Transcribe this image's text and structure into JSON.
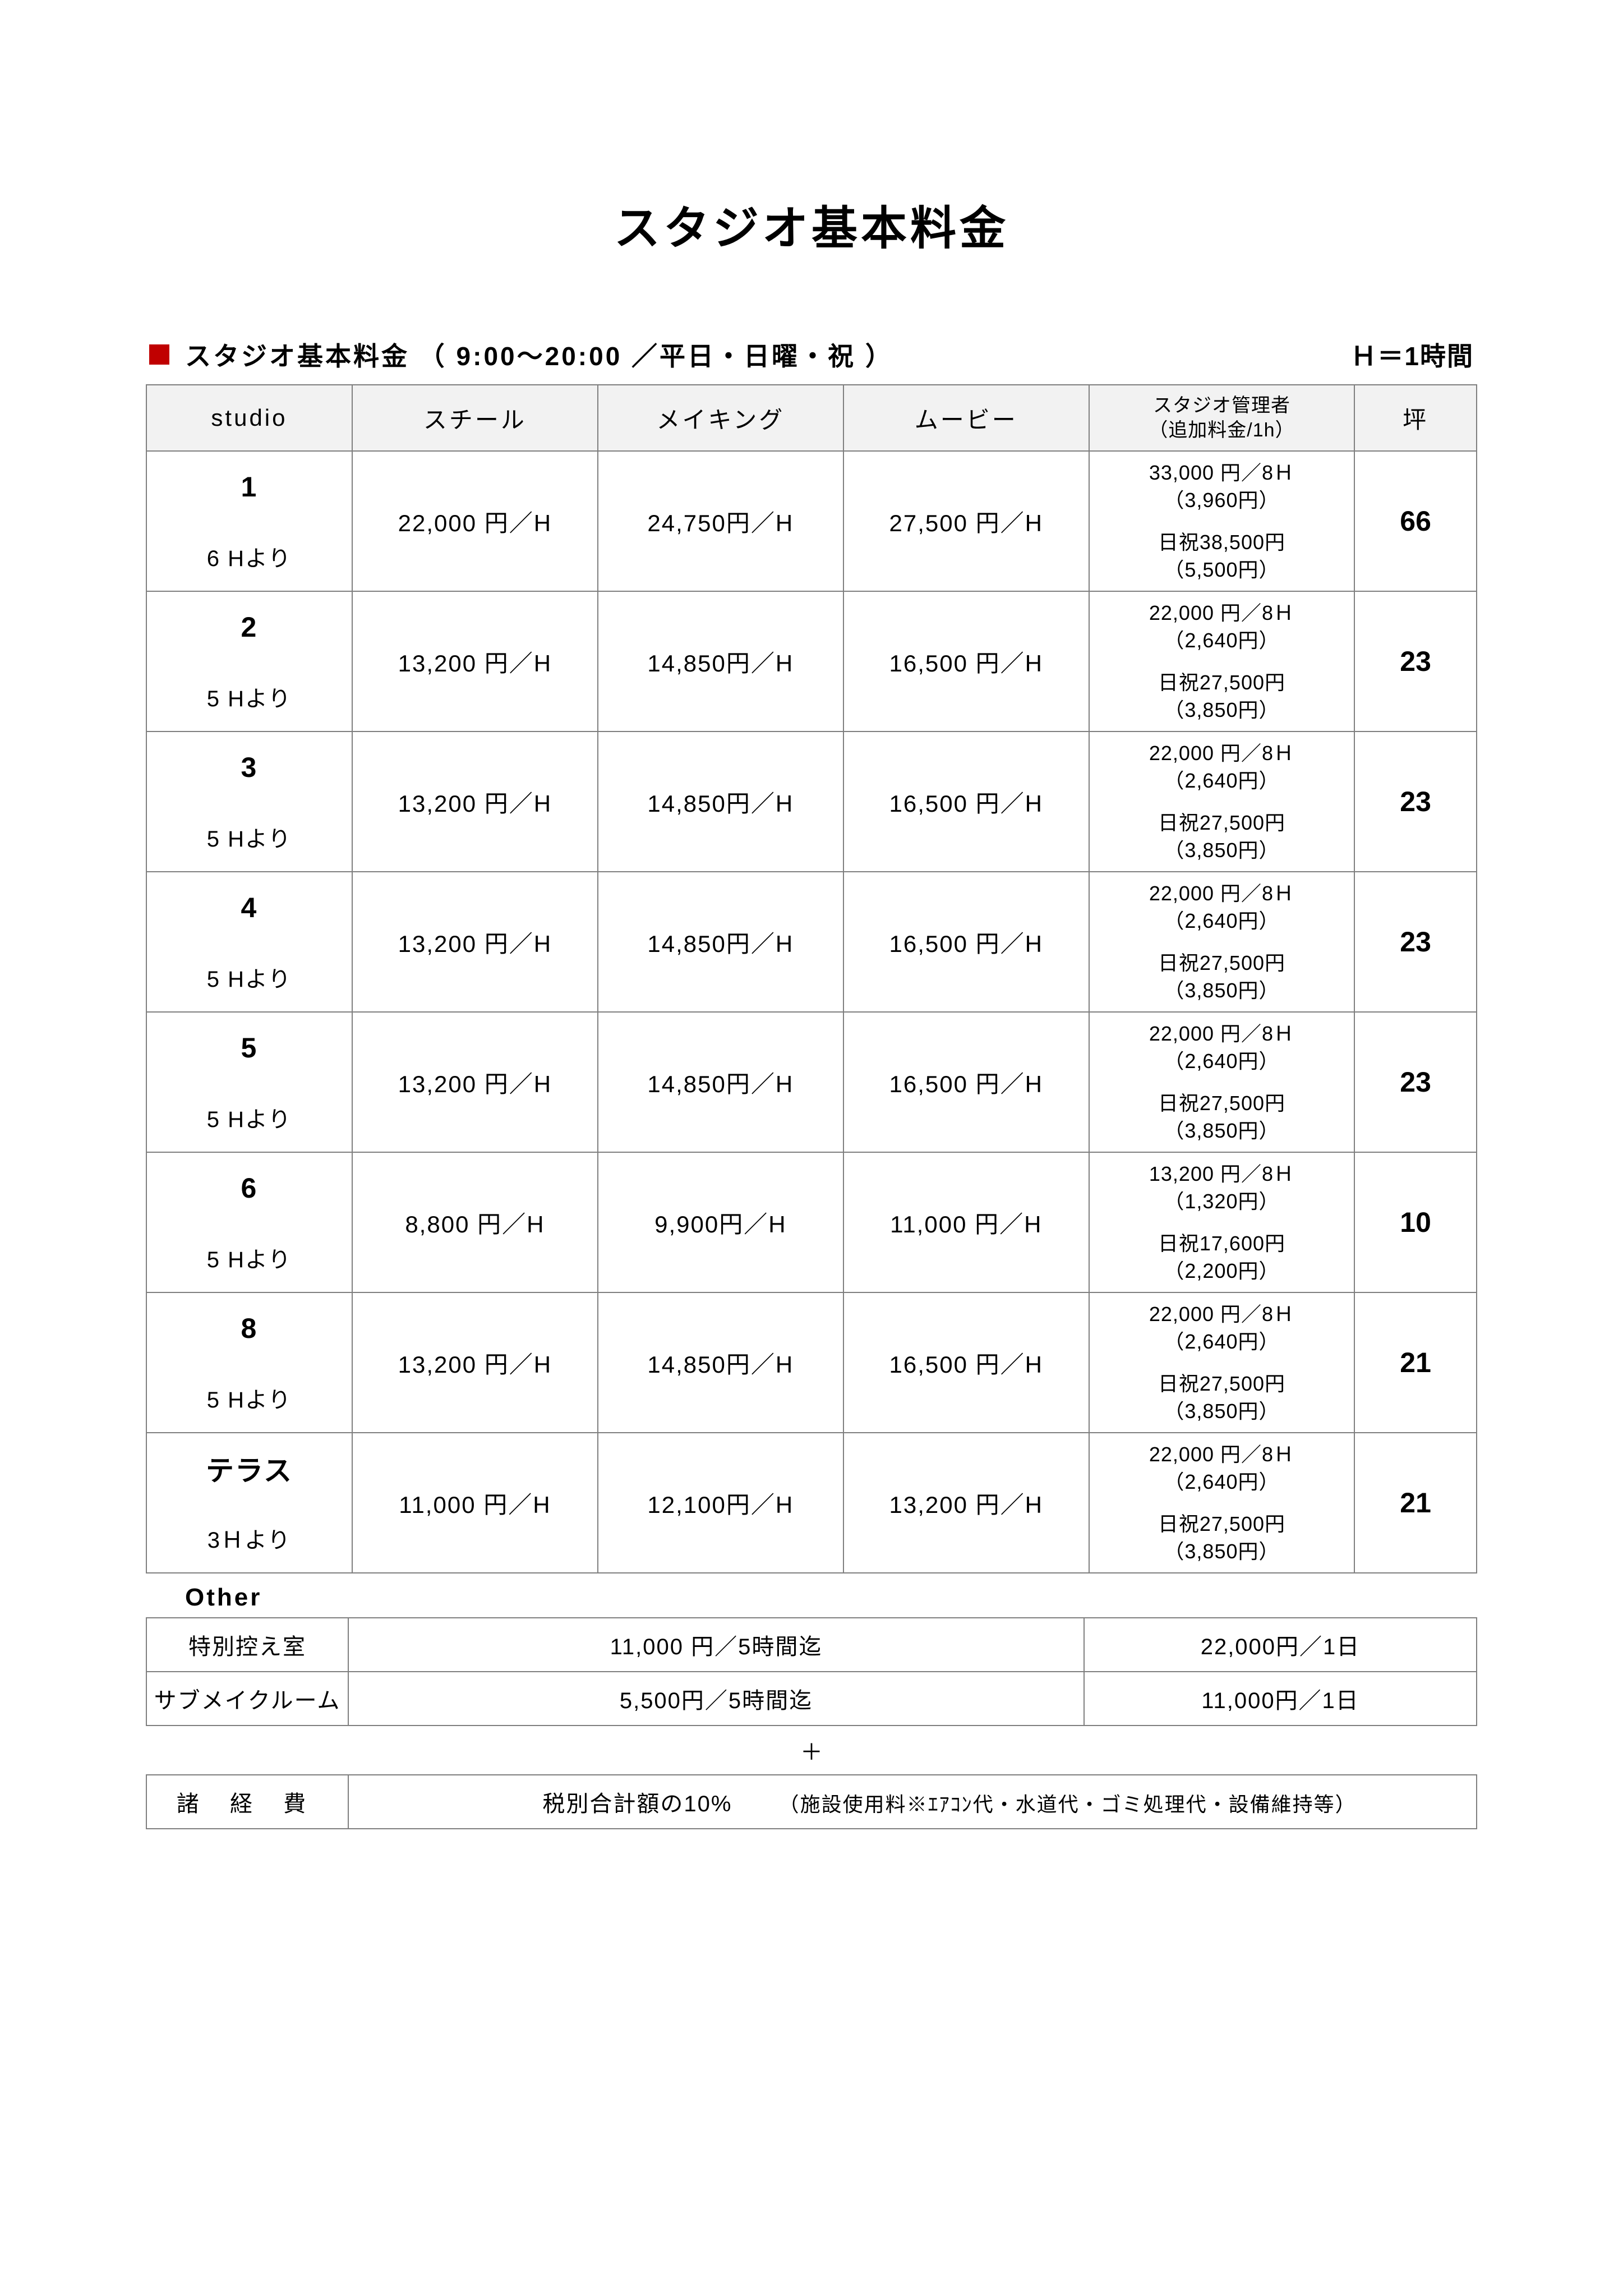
{
  "title": "スタジオ基本料金",
  "subtitle_left": "スタジオ基本料金 （ 9:00〜20:00 ／平日・日曜・祝 ）",
  "subtitle_right": "Ｈ＝1時間",
  "colors": {
    "marker": "#c00000",
    "header_bg": "#f2f2f2",
    "border": "#7f7f7f"
  },
  "columns": {
    "studio": "studio",
    "steel": "スチール",
    "making": "メイキング",
    "movie": "ムービー",
    "manager_l1": "スタジオ管理者",
    "manager_l2": "（追加料金/1h）",
    "tsubo": "坪"
  },
  "rows": [
    {
      "studio": "1",
      "min": "6 Hより",
      "steel": "22,000 円／H",
      "making": "24,750円／H",
      "movie": "27,500 円／H",
      "mgr_top_l1": "33,000 円／8Ｈ",
      "mgr_top_l2": "（3,960円）",
      "mgr_bot_l1": "日祝38,500円",
      "mgr_bot_l2": "（5,500円）",
      "tsubo": "66"
    },
    {
      "studio": "2",
      "min": "5 Hより",
      "steel": "13,200 円／H",
      "making": "14,850円／H",
      "movie": "16,500 円／H",
      "mgr_top_l1": "22,000 円／8Ｈ",
      "mgr_top_l2": "（2,640円）",
      "mgr_bot_l1": "日祝27,500円",
      "mgr_bot_l2": "（3,850円）",
      "tsubo": "23"
    },
    {
      "studio": "3",
      "min": "5 Hより",
      "steel": "13,200 円／H",
      "making": "14,850円／H",
      "movie": "16,500 円／H",
      "mgr_top_l1": "22,000 円／8Ｈ",
      "mgr_top_l2": "（2,640円）",
      "mgr_bot_l1": "日祝27,500円",
      "mgr_bot_l2": "（3,850円）",
      "tsubo": "23"
    },
    {
      "studio": "4",
      "min": "5 Hより",
      "steel": "13,200 円／H",
      "making": "14,850円／H",
      "movie": "16,500 円／H",
      "mgr_top_l1": "22,000 円／8Ｈ",
      "mgr_top_l2": "（2,640円）",
      "mgr_bot_l1": "日祝27,500円",
      "mgr_bot_l2": "（3,850円）",
      "tsubo": "23"
    },
    {
      "studio": "5",
      "min": "5 Hより",
      "steel": "13,200 円／H",
      "making": "14,850円／H",
      "movie": "16,500 円／H",
      "mgr_top_l1": "22,000 円／8Ｈ",
      "mgr_top_l2": "（2,640円）",
      "mgr_bot_l1": "日祝27,500円",
      "mgr_bot_l2": "（3,850円）",
      "tsubo": "23"
    },
    {
      "studio": "6",
      "min": "5 Hより",
      "steel": "8,800 円／H",
      "making": "9,900円／H",
      "movie": "11,000 円／H",
      "mgr_top_l1": "13,200 円／8Ｈ",
      "mgr_top_l2": "（1,320円）",
      "mgr_bot_l1": "日祝17,600円",
      "mgr_bot_l2": "（2,200円）",
      "tsubo": "10"
    },
    {
      "studio": "8",
      "min": "5 Hより",
      "steel": "13,200 円／H",
      "making": "14,850円／H",
      "movie": "16,500 円／H",
      "mgr_top_l1": "22,000 円／8Ｈ",
      "mgr_top_l2": "（2,640円）",
      "mgr_bot_l1": "日祝27,500円",
      "mgr_bot_l2": "（3,850円）",
      "tsubo": "21"
    },
    {
      "studio": "テラス",
      "min": "3Ｈより",
      "steel": "11,000 円／H",
      "making": "12,100円／H",
      "movie": "13,200 円／H",
      "mgr_top_l1": "22,000 円／8Ｈ",
      "mgr_top_l2": "（2,640円）",
      "mgr_bot_l1": "日祝27,500円",
      "mgr_bot_l2": "（3,850円）",
      "tsubo": "21"
    }
  ],
  "other_label": "Other",
  "other_rows": [
    {
      "name": "特別控え室",
      "rate5h": "11,000 円／5時間迄",
      "rate1d": "22,000円／1日"
    },
    {
      "name": "サブメイクルーム",
      "rate5h": "5,500円／5時間迄",
      "rate1d": "11,000円／1日"
    }
  ],
  "plus": "＋",
  "expense": {
    "label": "諸 経 費",
    "rate": "税別合計額の10%",
    "note": "（施設使用料※ｴｱｺﾝ代・水道代・ゴミ処理代・設備維持等）"
  }
}
